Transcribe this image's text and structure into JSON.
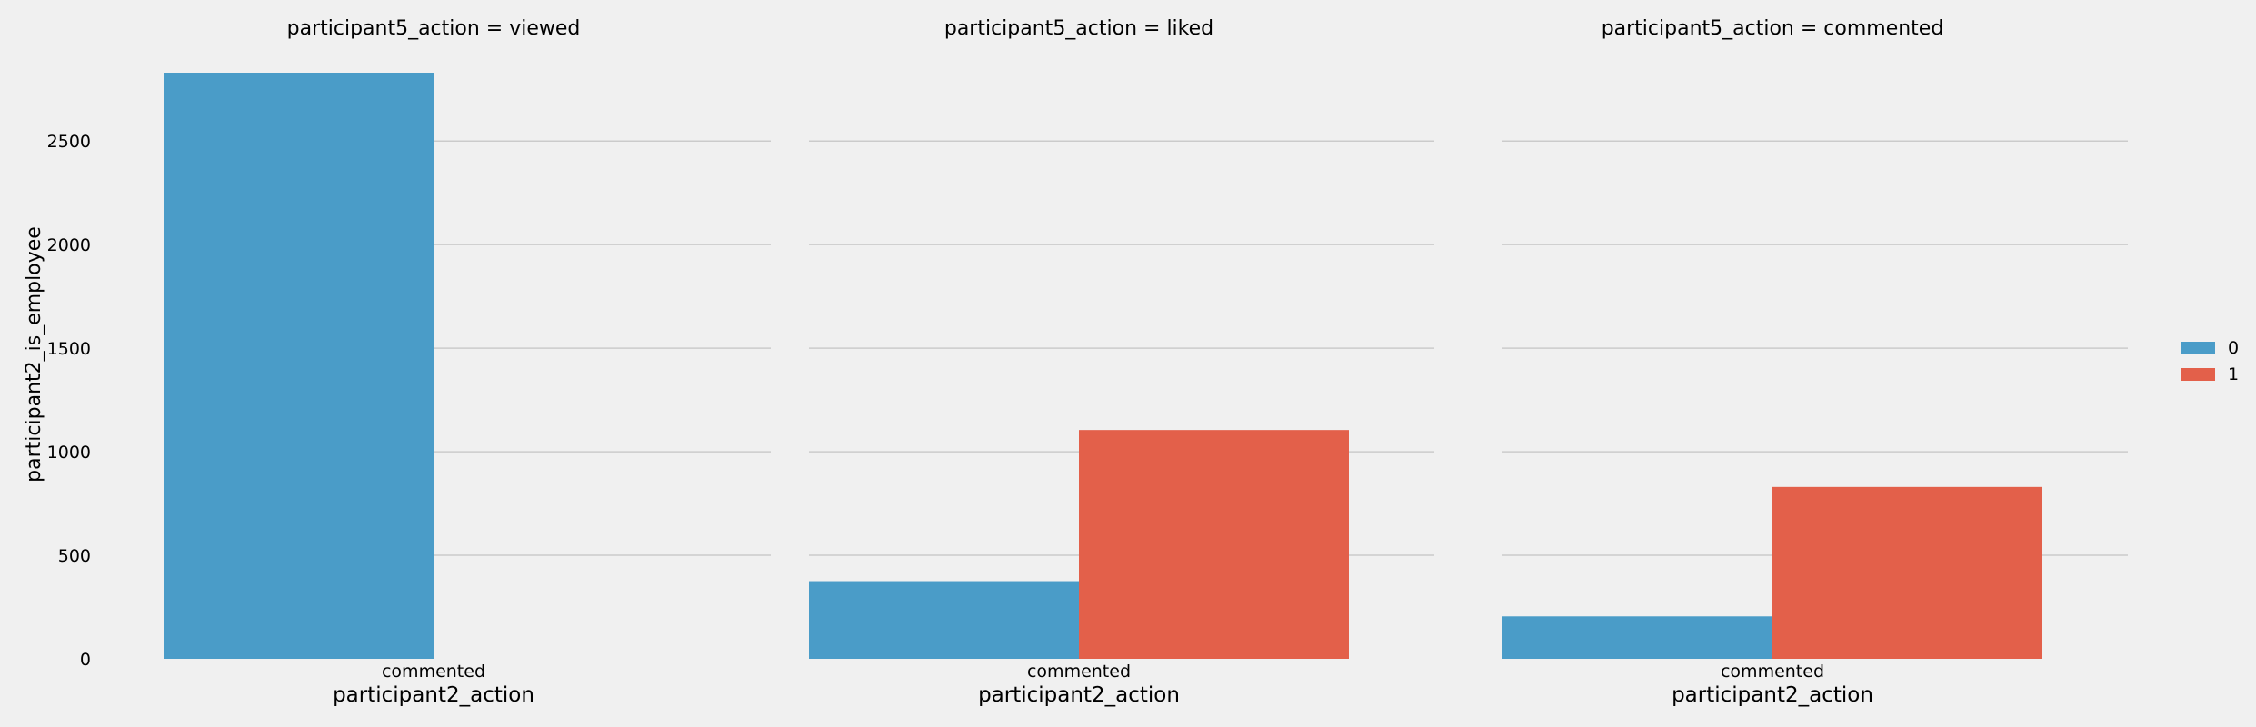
{
  "chart_data": {
    "type": "bar",
    "ylabel": "participant2_is_employee",
    "ylim": [
      0,
      2830
    ],
    "yticks": [
      0,
      500,
      1000,
      1500,
      2000,
      2500
    ],
    "grid": true,
    "legend": {
      "placement": "right",
      "entries": [
        {
          "label": "0",
          "color": "#4a9cc8"
        },
        {
          "label": "1",
          "color": "#e3604a"
        }
      ]
    },
    "panels": [
      {
        "title": "participant5_action = viewed",
        "xlabel": "participant2_action",
        "categories": [
          "commented"
        ],
        "series": [
          {
            "name": "0",
            "values": [
              2830
            ]
          },
          {
            "name": "1",
            "values": [
              0
            ]
          }
        ]
      },
      {
        "title": "participant5_action = liked",
        "xlabel": "participant2_action",
        "categories": [
          "commented"
        ],
        "series": [
          {
            "name": "0",
            "values": [
              375
            ]
          },
          {
            "name": "1",
            "values": [
              1105
            ]
          }
        ]
      },
      {
        "title": "participant5_action = commented",
        "xlabel": "participant2_action",
        "categories": [
          "commented"
        ],
        "series": [
          {
            "name": "0",
            "values": [
              205
            ]
          },
          {
            "name": "1",
            "values": [
              830
            ]
          }
        ]
      }
    ]
  }
}
